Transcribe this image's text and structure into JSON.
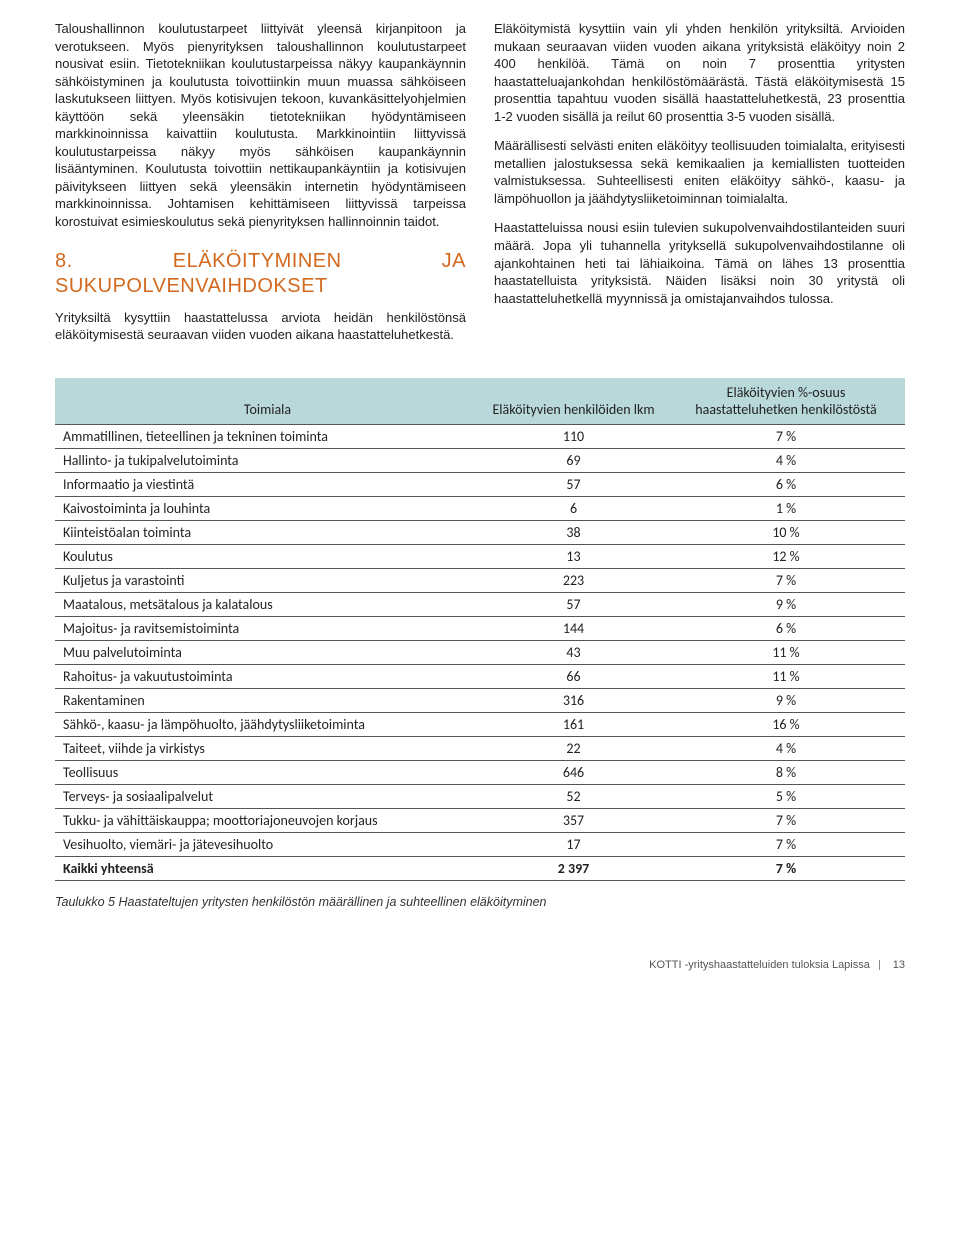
{
  "left_column": {
    "p1": "Taloushallinnon koulutustarpeet liittyivät yleensä kirjanpitoon ja verotukseen. Myös pienyrityksen taloushallinnon koulutustarpeet nousivat esiin. Tietotekniikan koulutustarpeissa näkyy kaupankäynnin sähköistyminen ja koulutusta toivottiinkin muun muassa sähköiseen laskutukseen liittyen. Myös kotisivujen tekoon, kuvankäsittelyohjelmien käyttöön sekä yleensäkin tietotekniikan hyödyntämiseen markkinoinnissa kaivattiin koulutusta. Markkinointiin liittyvissä koulutustarpeissa näkyy myös sähköisen kaupankäynnin lisääntyminen. Koulutusta toivottiin nettikaupankäyntiin ja kotisivujen päivitykseen liittyen sekä yleensäkin internetin hyödyntämiseen markkinoinnissa. Johtamisen kehittämiseen liittyvissä tarpeissa korostuivat esimieskoulutus sekä pienyrityksen hallinnoinnin taidot.",
    "heading": "8. ELÄKÖITYMINEN JA SUKUPOLVENVAIHDOKSET",
    "p2": "Yrityksiltä kysyttiin haastattelussa arviota heidän henkilöstönsä eläköitymisestä seuraavan viiden vuoden aikana haastatteluhetkestä."
  },
  "right_column": {
    "p1": "Eläköitymistä kysyttiin vain yli yhden henkilön yrityksiltä. Arvioiden mukaan seuraavan viiden vuoden aikana yrityksistä eläköityy noin 2 400 henkilöä. Tämä on noin 7 prosenttia yritysten haastatteluajankohdan henkilöstömäärästä. Tästä eläköitymisestä 15 prosenttia tapahtuu vuoden sisällä haastatteluhetkestä, 23 prosenttia 1-2 vuoden sisällä ja reilut 60 prosenttia 3-5 vuoden sisällä.",
    "p2": "Määrällisesti selvästi eniten eläköityy teollisuuden toimialalta, erityisesti metallien jalostuksessa sekä kemikaalien ja kemiallisten tuotteiden valmistuksessa. Suhteellisesti eniten eläköityy sähkö-, kaasu- ja lämpöhuollon ja jäähdytysliiketoiminnan toimialalta.",
    "p3": "Haastatteluissa nousi esiin tulevien sukupolvenvaihdostilanteiden suuri määrä. Jopa yli tuhannella yrityksellä sukupolvenvaihdostilanne oli ajankohtainen heti tai lähiaikoina. Tämä on lähes 13 prosenttia haastatelluista yrityksistä. Näiden lisäksi noin 30 yritystä oli haastatteluhetkellä myynnissä ja omistajanvaihdos tulossa."
  },
  "table": {
    "headers": {
      "col1": "Toimiala",
      "col2": "Eläköityvien henkilöiden lkm",
      "col3": "Eläköityvien %-osuus haastatteluhetken henkilöstöstä"
    },
    "rows": [
      {
        "name": "Ammatillinen, tieteellinen ja tekninen toiminta",
        "n": "110",
        "p": "7 %"
      },
      {
        "name": "Hallinto- ja tukipalvelutoiminta",
        "n": "69",
        "p": "4 %"
      },
      {
        "name": "Informaatio ja viestintä",
        "n": "57",
        "p": "6 %"
      },
      {
        "name": "Kaivostoiminta ja louhinta",
        "n": "6",
        "p": "1 %"
      },
      {
        "name": "Kiinteistöalan toiminta",
        "n": "38",
        "p": "10 %"
      },
      {
        "name": "Koulutus",
        "n": "13",
        "p": "12 %"
      },
      {
        "name": "Kuljetus ja varastointi",
        "n": "223",
        "p": "7 %"
      },
      {
        "name": "Maatalous, metsätalous ja kalatalous",
        "n": "57",
        "p": "9 %"
      },
      {
        "name": "Majoitus- ja ravitsemistoiminta",
        "n": "144",
        "p": "6 %"
      },
      {
        "name": "Muu palvelutoiminta",
        "n": "43",
        "p": "11 %"
      },
      {
        "name": "Rahoitus- ja vakuutustoiminta",
        "n": "66",
        "p": "11 %"
      },
      {
        "name": "Rakentaminen",
        "n": "316",
        "p": "9 %"
      },
      {
        "name": "Sähkö-, kaasu- ja lämpöhuolto, jäähdytysliiketoiminta",
        "n": "161",
        "p": "16 %"
      },
      {
        "name": "Taiteet, viihde ja virkistys",
        "n": "22",
        "p": "4 %"
      },
      {
        "name": "Teollisuus",
        "n": "646",
        "p": "8 %"
      },
      {
        "name": "Terveys- ja sosiaalipalvelut",
        "n": "52",
        "p": "5 %"
      },
      {
        "name": "Tukku- ja vähittäiskauppa; moottoriajoneuvojen korjaus",
        "n": "357",
        "p": "7 %"
      },
      {
        "name": "Vesihuolto, viemäri- ja jätevesihuolto",
        "n": "17",
        "p": "7 %"
      }
    ],
    "total": {
      "name": "Kaikki yhteensä",
      "n": "2 397",
      "p": "7 %"
    }
  },
  "caption": "Taulukko 5 Haastateltujen yritysten henkilöstön määrällinen ja suhteellinen eläköityminen",
  "footer": {
    "text": "KOTTI -yrityshaastatteluiden tuloksia Lapissa",
    "page": "13"
  },
  "style": {
    "heading_color": "#d2691e",
    "table_header_bg": "#b8d8da",
    "border_color": "#555555",
    "body_fontsize": 13
  }
}
